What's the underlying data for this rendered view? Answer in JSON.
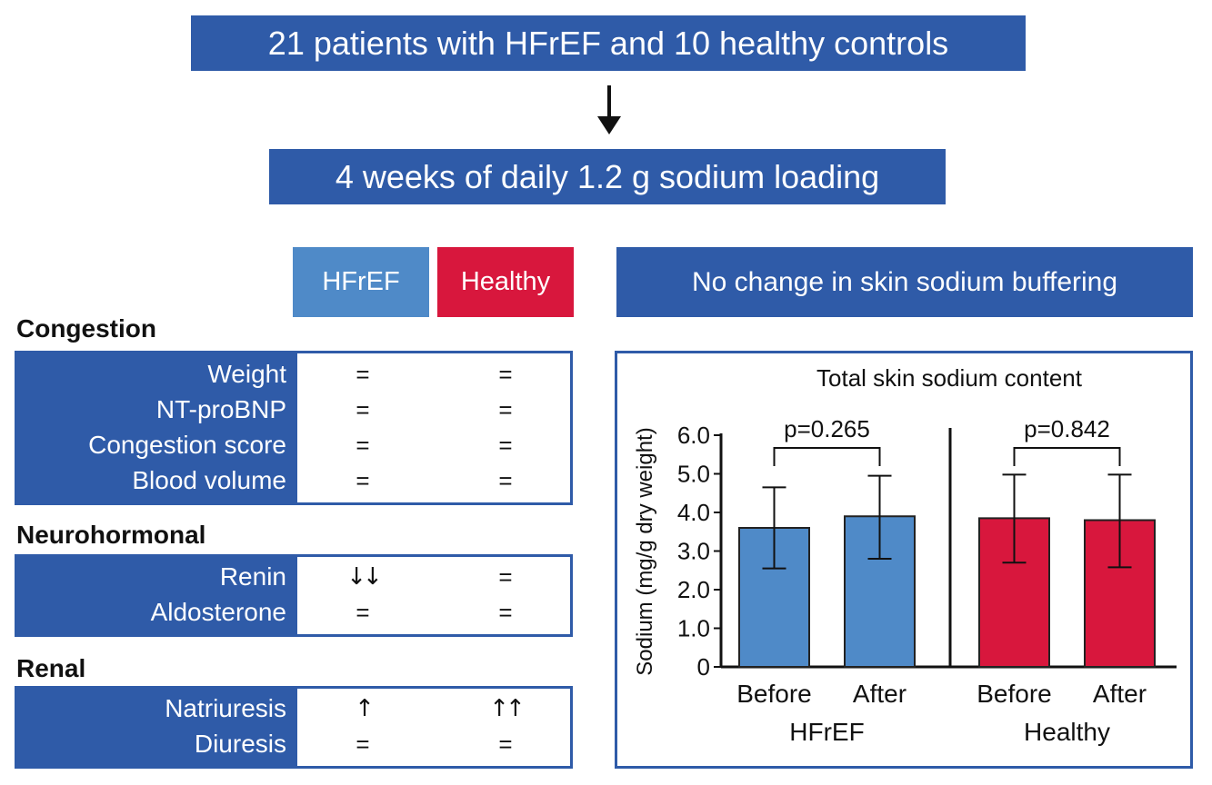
{
  "top_title": "21 patients with HFrEF and 10 healthy controls",
  "loading_label": "4 weeks of daily 1.2 g sodium loading",
  "columns": {
    "hfref": "HFrEF",
    "healthy": "Healthy"
  },
  "skin_header": "No change in skin sodium buffering",
  "sections": [
    {
      "title": "Congestion",
      "rows": [
        {
          "label": "Weight",
          "hfref": "=",
          "healthy": "="
        },
        {
          "label": "NT-proBNP",
          "hfref": "=",
          "healthy": "="
        },
        {
          "label": "Congestion score",
          "hfref": "=",
          "healthy": "="
        },
        {
          "label": "Blood volume",
          "hfref": "=",
          "healthy": "="
        }
      ]
    },
    {
      "title": "Neurohormonal",
      "rows": [
        {
          "label": "Renin",
          "hfref": "↓↓",
          "healthy": "="
        },
        {
          "label": "Aldosterone",
          "hfref": "=",
          "healthy": "="
        }
      ]
    },
    {
      "title": "Renal",
      "rows": [
        {
          "label": "Natriuresis",
          "hfref": "↑",
          "healthy": "↑↑"
        },
        {
          "label": "Diuresis",
          "hfref": "=",
          "healthy": "="
        }
      ]
    }
  ],
  "colors": {
    "header_blue": "#2f5ba8",
    "hfref_blue": "#4f8ac8",
    "healthy_red": "#d8173d"
  },
  "chart_data": {
    "type": "bar",
    "title": "Total skin sodium content",
    "ylabel": "Sodium (mg/g dry weight)",
    "ylim": [
      0,
      6.0
    ],
    "yticks": [
      "0",
      "1.0",
      "2.0",
      "3.0",
      "4.0",
      "5.0",
      "6.0"
    ],
    "groups": [
      {
        "name": "HFrEF",
        "color": "#4f8ac8",
        "p_value": "p=0.265",
        "bars": [
          {
            "label": "Before",
            "value": 3.6,
            "err_low": 2.55,
            "err_high": 4.65
          },
          {
            "label": "After",
            "value": 3.9,
            "err_low": 2.8,
            "err_high": 4.95
          }
        ]
      },
      {
        "name": "Healthy",
        "color": "#d8173d",
        "p_value": "p=0.842",
        "bars": [
          {
            "label": "Before",
            "value": 3.85,
            "err_low": 2.7,
            "err_high": 4.98
          },
          {
            "label": "After",
            "value": 3.8,
            "err_low": 2.58,
            "err_high": 4.98
          }
        ]
      }
    ]
  }
}
